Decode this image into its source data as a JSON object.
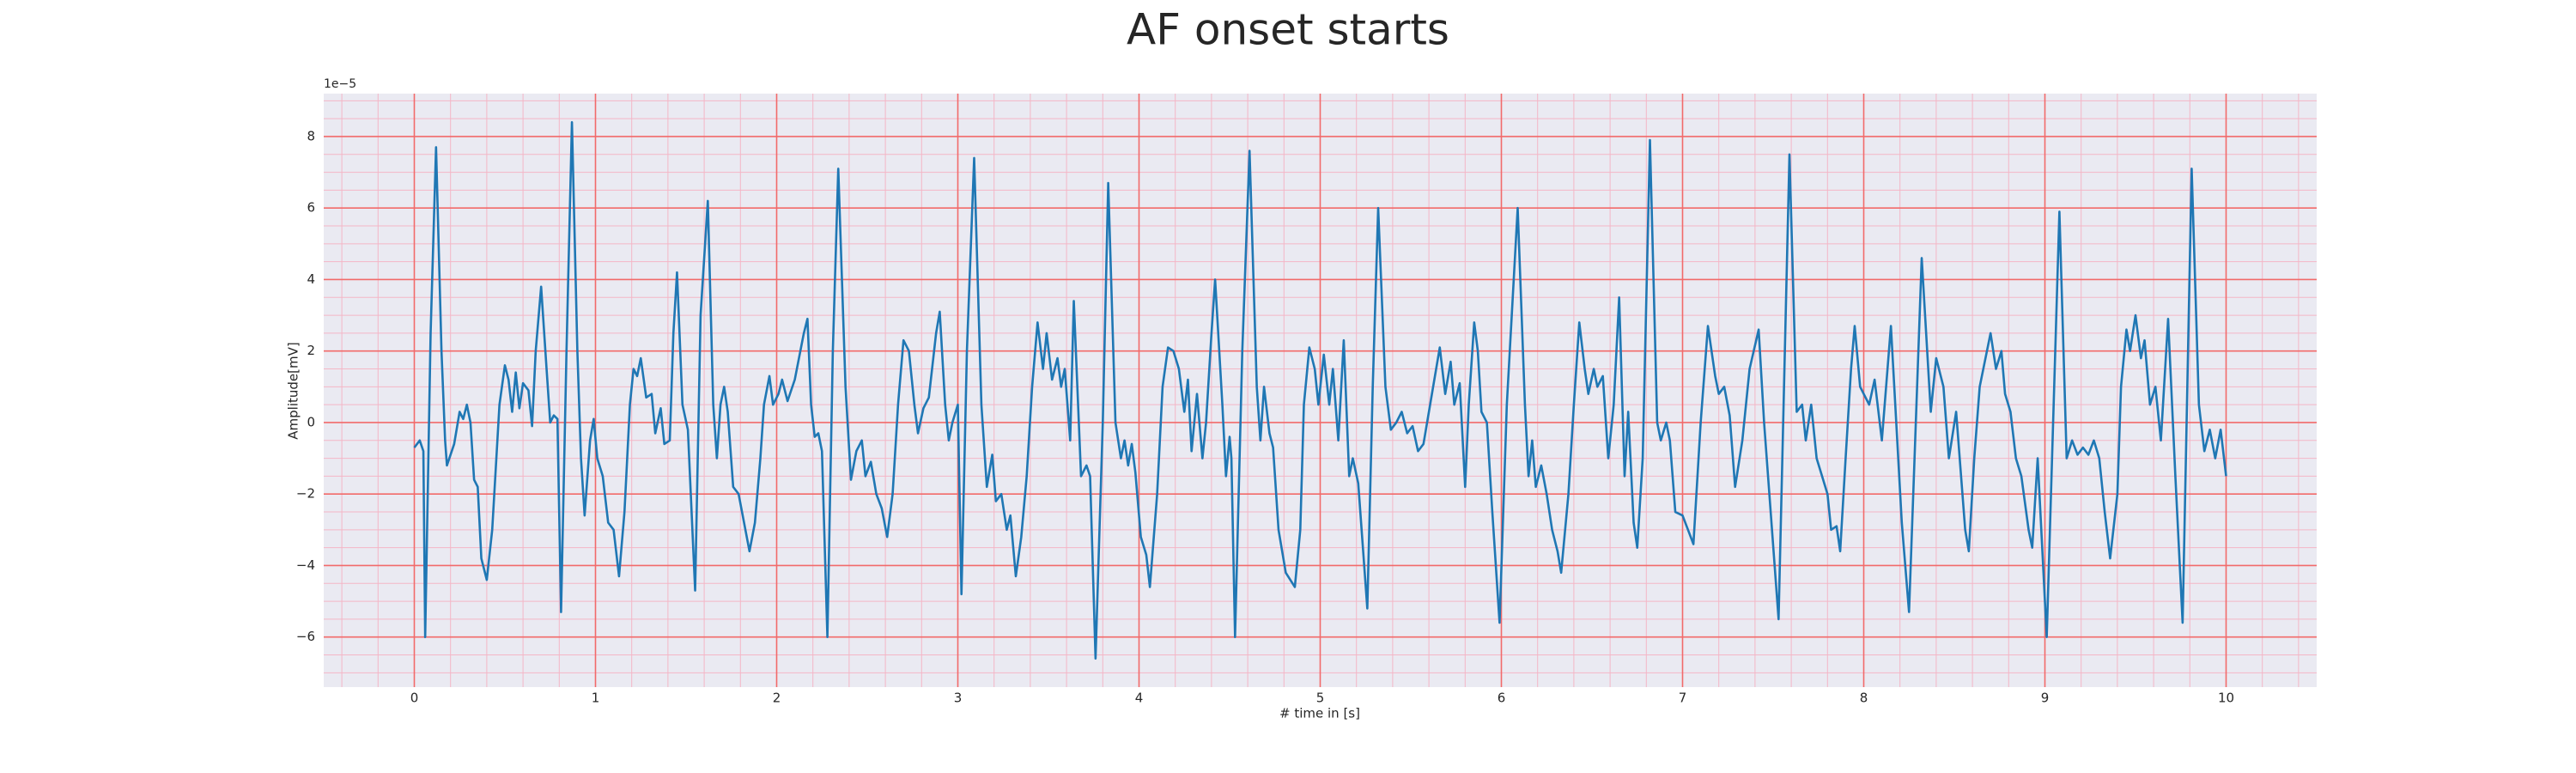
{
  "chart_data": {
    "type": "line",
    "title": "AF onset starts",
    "x_label": "# time in [s]",
    "y_label": "Amplitude[mV]",
    "y_offset_label": "1e−5",
    "grid": true,
    "minor_grid": true,
    "xlim": [
      -0.5,
      10.5
    ],
    "ylim": [
      -7.4,
      9.2
    ],
    "xticks": [
      0,
      1,
      2,
      3,
      4,
      5,
      6,
      7,
      8,
      9,
      10
    ],
    "yticks": [
      {
        "value": -6,
        "label": "−6"
      },
      {
        "value": -4,
        "label": "−4"
      },
      {
        "value": -2,
        "label": "−2"
      },
      0,
      2,
      4,
      6,
      8
    ],
    "series": [
      {
        "color": "#1f77b4",
        "x": [
          0,
          0.03,
          0.05,
          0.06,
          0.09,
          0.12,
          0.15,
          0.17,
          0.18,
          0.22,
          0.25,
          0.27,
          0.29,
          0.31,
          0.33,
          0.35,
          0.37,
          0.4,
          0.43,
          0.47,
          0.5,
          0.52,
          0.54,
          0.56,
          0.58,
          0.6,
          0.63,
          0.65,
          0.67,
          0.7,
          0.73,
          0.75,
          0.77,
          0.79,
          0.81,
          0.84,
          0.87,
          0.9,
          0.92,
          0.94,
          0.97,
          0.99,
          1.01,
          1.04,
          1.07,
          1.1,
          1.13,
          1.16,
          1.19,
          1.21,
          1.23,
          1.25,
          1.28,
          1.31,
          1.33,
          1.36,
          1.38,
          1.41,
          1.43,
          1.45,
          1.48,
          1.51,
          1.55,
          1.58,
          1.62,
          1.65,
          1.67,
          1.69,
          1.71,
          1.73,
          1.76,
          1.79,
          1.82,
          1.85,
          1.88,
          1.91,
          1.93,
          1.96,
          1.98,
          2.01,
          2.03,
          2.06,
          2.1,
          2.15,
          2.17,
          2.19,
          2.21,
          2.23,
          2.25,
          2.28,
          2.31,
          2.34,
          2.38,
          2.41,
          2.44,
          2.47,
          2.49,
          2.52,
          2.55,
          2.58,
          2.61,
          2.64,
          2.67,
          2.7,
          2.73,
          2.76,
          2.78,
          2.81,
          2.84,
          2.88,
          2.9,
          2.93,
          2.95,
          2.97,
          3.0,
          3.02,
          3.05,
          3.09,
          3.13,
          3.16,
          3.19,
          3.21,
          3.24,
          3.27,
          3.29,
          3.32,
          3.35,
          3.38,
          3.41,
          3.44,
          3.47,
          3.49,
          3.52,
          3.55,
          3.57,
          3.59,
          3.62,
          3.64,
          3.68,
          3.71,
          3.73,
          3.76,
          3.8,
          3.83,
          3.87,
          3.9,
          3.92,
          3.94,
          3.96,
          3.98,
          4.01,
          4.04,
          4.06,
          4.1,
          4.13,
          4.16,
          4.19,
          4.22,
          4.25,
          4.27,
          4.29,
          4.32,
          4.35,
          4.37,
          4.4,
          4.42,
          4.46,
          4.48,
          4.5,
          4.51,
          4.53,
          4.57,
          4.61,
          4.65,
          4.67,
          4.69,
          4.72,
          4.74,
          4.77,
          4.81,
          4.86,
          4.89,
          4.91,
          4.94,
          4.97,
          4.99,
          5.02,
          5.05,
          5.07,
          5.1,
          5.13,
          5.16,
          5.18,
          5.21,
          5.26,
          5.29,
          5.32,
          5.36,
          5.39,
          5.42,
          5.45,
          5.48,
          5.51,
          5.54,
          5.57,
          5.6,
          5.63,
          5.66,
          5.69,
          5.72,
          5.74,
          5.77,
          5.8,
          5.82,
          5.85,
          5.87,
          5.89,
          5.92,
          5.95,
          5.99,
          6.03,
          6.09,
          6.13,
          6.15,
          6.17,
          6.19,
          6.22,
          6.25,
          6.28,
          6.31,
          6.33,
          6.37,
          6.4,
          6.43,
          6.46,
          6.48,
          6.51,
          6.53,
          6.56,
          6.59,
          6.62,
          6.65,
          6.68,
          6.7,
          6.73,
          6.75,
          6.78,
          6.82,
          6.86,
          6.88,
          6.91,
          6.93,
          6.96,
          7.0,
          7.03,
          7.06,
          7.1,
          7.14,
          7.18,
          7.2,
          7.23,
          7.26,
          7.29,
          7.33,
          7.37,
          7.42,
          7.45,
          7.53,
          7.59,
          7.63,
          7.66,
          7.68,
          7.71,
          7.74,
          7.77,
          7.8,
          7.82,
          7.85,
          7.87,
          7.9,
          7.93,
          7.95,
          7.98,
          8.0,
          8.03,
          8.06,
          8.1,
          8.15,
          8.21,
          8.25,
          8.32,
          8.37,
          8.4,
          8.44,
          8.47,
          8.51,
          8.56,
          8.58,
          8.61,
          8.64,
          8.7,
          8.73,
          8.76,
          8.78,
          8.81,
          8.84,
          8.87,
          8.91,
          8.93,
          8.96,
          9.01,
          9.08,
          9.12,
          9.15,
          9.18,
          9.21,
          9.24,
          9.27,
          9.3,
          9.33,
          9.36,
          9.4,
          9.42,
          9.45,
          9.47,
          9.5,
          9.53,
          9.55,
          9.58,
          9.61,
          9.64,
          9.68,
          9.72,
          9.76,
          9.81,
          9.85,
          9.88,
          9.91,
          9.94,
          9.97,
          10.0
        ],
        "values": [
          -0.7,
          -0.5,
          -0.8,
          -6.0,
          2.5,
          7.7,
          2,
          -0.5,
          -1.2,
          -0.6,
          0.3,
          0.1,
          0.5,
          0,
          -1.6,
          -1.8,
          -3.8,
          -4.4,
          -3,
          0.5,
          1.6,
          1.2,
          0.3,
          1.4,
          0.4,
          1.1,
          0.9,
          -0.1,
          2,
          3.8,
          1.5,
          0,
          0.2,
          0.1,
          -5.3,
          2,
          8.4,
          2,
          -1,
          -2.6,
          -0.5,
          0.1,
          -1,
          -1.5,
          -2.8,
          -3,
          -4.3,
          -2.5,
          0.5,
          1.5,
          1.3,
          1.8,
          0.7,
          0.8,
          -0.3,
          0.4,
          -0.6,
          -0.5,
          2.5,
          4.2,
          0.5,
          -0.2,
          -4.7,
          3,
          6.2,
          0.5,
          -1,
          0.5,
          1,
          0.3,
          -1.8,
          -2.0,
          -2.8,
          -3.6,
          -2.8,
          -1,
          0.5,
          1.3,
          0.5,
          0.8,
          1.2,
          0.6,
          1.2,
          2.5,
          2.9,
          0.5,
          -0.4,
          -0.3,
          -0.8,
          -6.0,
          2,
          7.1,
          1,
          -1.6,
          -0.8,
          -0.5,
          -1.5,
          -1.1,
          -2,
          -2.4,
          -3.2,
          -2,
          0.5,
          2.3,
          2,
          0.5,
          -0.3,
          0.4,
          0.7,
          2.5,
          3.1,
          0.5,
          -0.5,
          0,
          0.5,
          -4.8,
          2,
          7.4,
          0.5,
          -1.8,
          -0.9,
          -2.2,
          -2,
          -3,
          -2.6,
          -4.3,
          -3.2,
          -1.5,
          1,
          2.8,
          1.5,
          2.5,
          1.2,
          1.8,
          1,
          1.5,
          -0.5,
          3.4,
          -1.5,
          -1.2,
          -1.5,
          -6.6,
          0,
          6.7,
          0,
          -1,
          -0.5,
          -1.2,
          -0.6,
          -1.4,
          -3.2,
          -3.7,
          -4.6,
          -2,
          1,
          2.1,
          2,
          1.5,
          0.3,
          1.2,
          -0.8,
          0.8,
          -1,
          0,
          2.5,
          4.0,
          0.5,
          -1.5,
          -0.4,
          -1,
          -6.0,
          2,
          7.6,
          1,
          -0.5,
          1,
          -0.3,
          -0.7,
          -3,
          -4.2,
          -4.6,
          -3,
          0.5,
          2.1,
          1.5,
          0.5,
          1.9,
          0.5,
          1.5,
          -0.5,
          2.3,
          -1.5,
          -1,
          -1.7,
          -5.2,
          1,
          6.0,
          1,
          -0.2,
          0,
          0.3,
          -0.3,
          -0.1,
          -0.8,
          -0.6,
          0.3,
          1.2,
          2.1,
          0.8,
          1.7,
          0.5,
          1.1,
          -1.8,
          0.5,
          2.8,
          2,
          0.3,
          0,
          -2.5,
          -5.6,
          0.5,
          6.0,
          0.5,
          -1.5,
          -0.5,
          -1.8,
          -1.2,
          -2,
          -3,
          -3.6,
          -4.2,
          -2,
          0.5,
          2.8,
          1.5,
          0.8,
          1.5,
          1,
          1.3,
          -1,
          0.5,
          3.5,
          -1.5,
          0.3,
          -2.8,
          -3.5,
          -1,
          7.9,
          0,
          -0.5,
          0,
          -0.5,
          -2.5,
          -2.6,
          -3.0,
          -3.4,
          0,
          2.7,
          1.3,
          0.8,
          1.0,
          0.2,
          -1.8,
          -0.5,
          1.5,
          2.6,
          0,
          -5.5,
          7.5,
          0.3,
          0.5,
          -0.5,
          0.5,
          -1,
          -1.5,
          -2,
          -3,
          -2.9,
          -3.6,
          -1,
          1.5,
          2.7,
          1,
          0.8,
          0.5,
          1.2,
          -0.5,
          2.7,
          -2.8,
          -5.3,
          4.6,
          0.3,
          1.8,
          1.0,
          -1,
          0.3,
          -3.0,
          -3.6,
          -1,
          1,
          2.5,
          1.5,
          2.0,
          0.8,
          0.3,
          -1,
          -1.5,
          -3,
          -3.5,
          -1,
          -6.0,
          5.9,
          -1,
          -0.5,
          -0.9,
          -0.7,
          -0.9,
          -0.5,
          -1,
          -2.5,
          -3.8,
          -2,
          1,
          2.6,
          2,
          3,
          1.8,
          2.3,
          0.5,
          1,
          -0.5,
          2.9,
          -1.5,
          -5.6,
          7.1,
          0.5,
          -0.8,
          -0.2,
          -1,
          -0.2,
          -1.5
        ]
      }
    ]
  }
}
